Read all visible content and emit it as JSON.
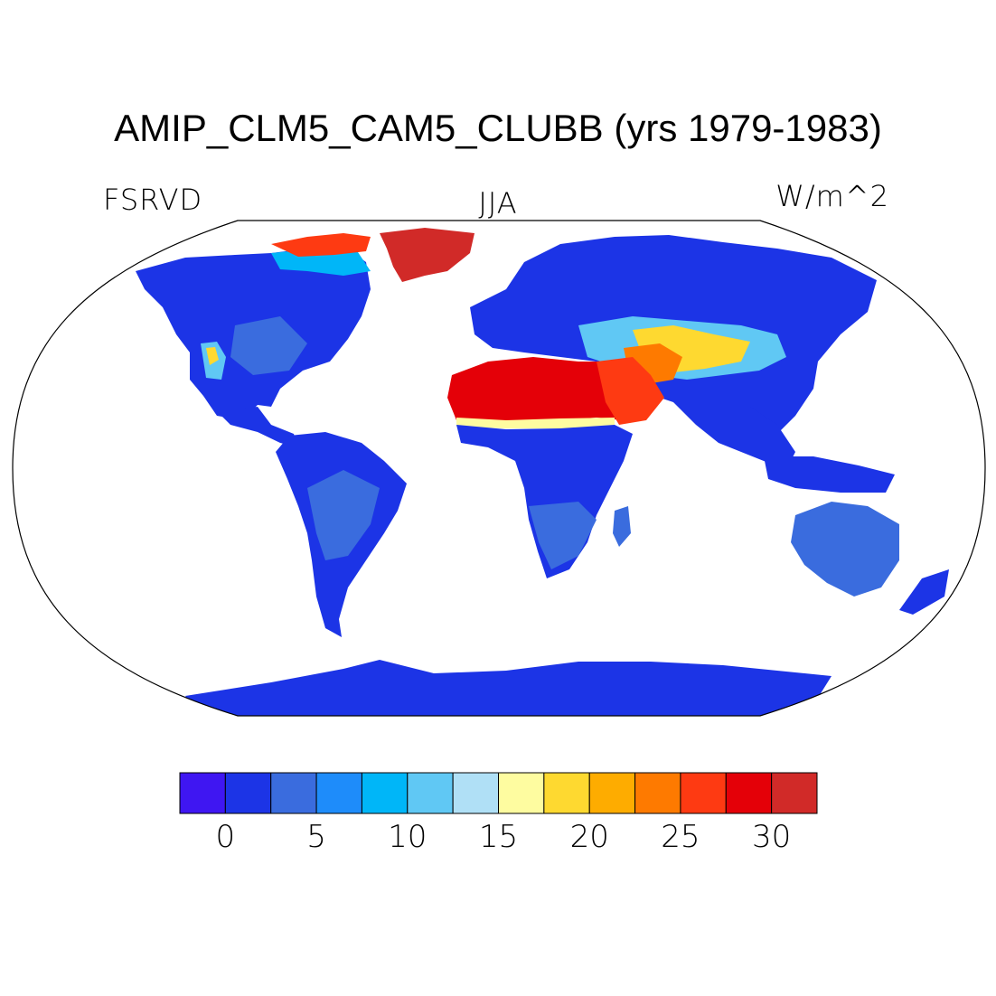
{
  "title": "AMIP_CLM5_CAM5_CLUBB (yrs 1979-1983)",
  "subtitle_left": "FSRVD",
  "subtitle_center": "JJA",
  "subtitle_right": "W/m^2",
  "colorbar": {
    "colors": [
      "#3f16f2",
      "#1c34e6",
      "#3a6cde",
      "#1e8cfa",
      "#00b6f8",
      "#60c8f4",
      "#b0e0f6",
      "#fefca0",
      "#fed930",
      "#feac00",
      "#fe7a00",
      "#fe3a12",
      "#e40008",
      "#d12a28"
    ],
    "tick_labels": [
      "0",
      "5",
      "10",
      "15",
      "20",
      "25",
      "30"
    ]
  },
  "map_data": {
    "type": "robinson-filled-map",
    "variable": "FSRVD",
    "season": "JJA",
    "units": "W/m^2",
    "regions": [
      {
        "name": "North America",
        "level": 1
      },
      {
        "name": "Greenland",
        "level": 13
      },
      {
        "name": "South America",
        "level": 1
      },
      {
        "name": "Europe/Siberia",
        "level": 1
      },
      {
        "name": "Sahara",
        "level": 12
      },
      {
        "name": "Arabian Peninsula",
        "level": 11
      },
      {
        "name": "Central Asia",
        "level": 8
      },
      {
        "name": "Southern Africa",
        "level": 2
      },
      {
        "name": "India/Southeast Asia",
        "level": 1
      },
      {
        "name": "Australia",
        "level": 2
      },
      {
        "name": "Antarctica",
        "level": 1
      }
    ]
  }
}
